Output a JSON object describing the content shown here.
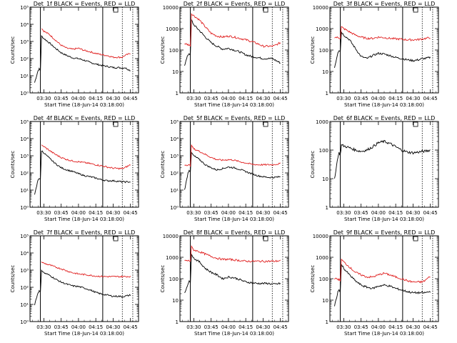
{
  "figure": {
    "xlabel": "Start Time (18-Jun-14 03:18:00)",
    "ylabel": "Counts/sec",
    "x_ticks": [
      "03:30",
      "03:45",
      "04:00",
      "04:15",
      "04:30",
      "04:45"
    ],
    "colors": {
      "events": "#000000",
      "lld": "#e02020"
    },
    "vertical_markers": [
      {
        "time": "03:27",
        "style": "solid"
      },
      {
        "time": "04:21",
        "style": "solid"
      },
      {
        "time": "04:38",
        "style": "dotted"
      },
      {
        "time": "04:47",
        "style": "dotted"
      }
    ]
  },
  "chart_data": [
    {
      "type": "line",
      "title": "Det_1f BLACK = Events, RED = LLD",
      "yscale": "log",
      "ylim": [
        1,
        100000
      ],
      "y_ticks": [
        "10⁰",
        "10¹",
        "10²",
        "10³",
        "10⁴",
        "10⁵"
      ],
      "x": [
        "03:22",
        "03:25",
        "03:26",
        "03:27",
        "03:28",
        "03:30",
        "03:35",
        "03:40",
        "03:45",
        "03:50",
        "03:55",
        "04:00",
        "04:05",
        "04:10",
        "04:15",
        "04:20",
        "04:25",
        "04:30",
        "04:35",
        "04:38",
        "04:40",
        "04:45",
        "04:48"
      ],
      "series": [
        {
          "name": "BLACK = Events",
          "y": [
            4,
            20,
            25,
            20,
            2000,
            1500,
            800,
            400,
            220,
            150,
            110,
            100,
            80,
            60,
            48,
            40,
            35,
            30,
            30,
            28,
            30,
            20,
            null
          ]
        },
        {
          "name": "RED = LLD",
          "y": [
            null,
            null,
            null,
            null,
            6000,
            4000,
            2500,
            1200,
            600,
            400,
            350,
            400,
            300,
            250,
            200,
            170,
            150,
            120,
            120,
            120,
            150,
            200,
            null
          ]
        }
      ]
    },
    {
      "type": "line",
      "title": "Det_2f BLACK = Events, RED = LLD",
      "yscale": "log",
      "ylim": [
        1,
        10000
      ],
      "y_ticks": [
        "1",
        "10",
        "100",
        "1000",
        "10000"
      ],
      "x": [
        "03:22",
        "03:25",
        "03:26",
        "03:27",
        "03:28",
        "03:30",
        "03:35",
        "03:40",
        "03:45",
        "03:50",
        "03:55",
        "04:00",
        "04:05",
        "04:10",
        "04:15",
        "04:20",
        "04:25",
        "04:30",
        "04:35",
        "04:38",
        "04:40",
        "04:45",
        "04:48"
      ],
      "series": [
        {
          "name": "BLACK = Events",
          "y": [
            20,
            60,
            70,
            60,
            2500,
            1500,
            800,
            400,
            220,
            150,
            110,
            120,
            100,
            80,
            60,
            50,
            45,
            40,
            40,
            40,
            35,
            25,
            null
          ]
        },
        {
          "name": "RED = LLD",
          "y": [
            200,
            180,
            170,
            160,
            5000,
            4000,
            2500,
            1200,
            600,
            450,
            400,
            450,
            400,
            350,
            300,
            250,
            200,
            150,
            150,
            150,
            160,
            220,
            null
          ]
        }
      ]
    },
    {
      "type": "line",
      "title": "Det_3f BLACK = Events, RED = LLD",
      "yscale": "log",
      "ylim": [
        1,
        10000
      ],
      "y_ticks": [
        "1",
        "10",
        "100",
        "1000",
        "10000"
      ],
      "x": [
        "03:22",
        "03:25",
        "03:26",
        "03:27",
        "03:28",
        "03:30",
        "03:35",
        "03:40",
        "03:45",
        "03:50",
        "03:55",
        "04:00",
        "04:05",
        "04:10",
        "04:15",
        "04:20",
        "04:25",
        "04:30",
        "04:35",
        "04:38",
        "04:40",
        "04:45",
        "04:48"
      ],
      "series": [
        {
          "name": "BLACK = Events",
          "y": [
            15,
            80,
            100,
            90,
            700,
            500,
            300,
            120,
            50,
            40,
            55,
            70,
            65,
            55,
            45,
            40,
            35,
            32,
            35,
            40,
            40,
            45,
            null
          ]
        },
        {
          "name": "RED = LLD",
          "y": [
            400,
            380,
            370,
            360,
            1200,
            1000,
            700,
            500,
            400,
            350,
            350,
            400,
            380,
            350,
            330,
            320,
            300,
            300,
            310,
            330,
            340,
            380,
            null
          ]
        }
      ]
    },
    {
      "type": "line",
      "title": "Det_4f BLACK = Events, RED = LLD",
      "yscale": "log",
      "ylim": [
        1,
        100000
      ],
      "y_ticks": [
        "10⁰",
        "10¹",
        "10²",
        "10³",
        "10⁴",
        "10⁵"
      ],
      "x": [
        "03:22",
        "03:25",
        "03:26",
        "03:27",
        "03:28",
        "03:30",
        "03:35",
        "03:40",
        "03:45",
        "03:50",
        "03:55",
        "04:00",
        "04:05",
        "04:10",
        "04:15",
        "04:20",
        "04:25",
        "04:30",
        "04:35",
        "04:38",
        "04:40",
        "04:45",
        "04:48"
      ],
      "series": [
        {
          "name": "BLACK = Events",
          "y": [
            5,
            40,
            50,
            40,
            2000,
            1500,
            700,
            350,
            200,
            150,
            120,
            90,
            70,
            60,
            50,
            40,
            35,
            35,
            32,
            30,
            30,
            30,
            null
          ]
        },
        {
          "name": "RED = LLD",
          "y": [
            null,
            null,
            null,
            null,
            4000,
            3500,
            2000,
            1200,
            800,
            600,
            500,
            450,
            400,
            350,
            300,
            260,
            220,
            190,
            180,
            180,
            200,
            300,
            null
          ]
        }
      ]
    },
    {
      "type": "line",
      "title": "Det_5f BLACK = Events, RED = LLD",
      "yscale": "log",
      "ylim": [
        1,
        100000
      ],
      "y_ticks": [
        "10⁰",
        "10¹",
        "10²",
        "10³",
        "10⁴",
        "10⁵"
      ],
      "x": [
        "03:22",
        "03:25",
        "03:26",
        "03:27",
        "03:28",
        "03:30",
        "03:35",
        "03:40",
        "03:45",
        "03:50",
        "03:55",
        "04:00",
        "04:05",
        "04:10",
        "04:15",
        "04:20",
        "04:25",
        "04:30",
        "04:35",
        "04:38",
        "04:40",
        "04:45",
        "04:48"
      ],
      "series": [
        {
          "name": "BLACK = Events",
          "y": [
            10,
            100,
            150,
            120,
            1500,
            1000,
            600,
            300,
            200,
            150,
            180,
            220,
            200,
            160,
            120,
            90,
            70,
            60,
            55,
            55,
            55,
            60,
            null
          ]
        },
        {
          "name": "RED = LLD",
          "y": [
            300,
            290,
            280,
            270,
            4000,
            2500,
            1800,
            1200,
            800,
            600,
            550,
            600,
            550,
            450,
            380,
            320,
            300,
            300,
            300,
            300,
            310,
            350,
            null
          ]
        }
      ]
    },
    {
      "type": "line",
      "title": "Det_6f BLACK = Events, RED = LLD",
      "yscale": "log",
      "ylim": [
        1,
        1000
      ],
      "y_ticks": [
        "1",
        "10",
        "100",
        "1000"
      ],
      "x": [
        "03:22",
        "03:25",
        "03:26",
        "03:27",
        "03:28",
        "03:30",
        "03:35",
        "03:40",
        "03:45",
        "03:50",
        "03:55",
        "04:00",
        "04:05",
        "04:10",
        "04:15",
        "04:20",
        "04:25",
        "04:30",
        "04:35",
        "04:38",
        "04:40",
        "04:45",
        "04:48"
      ],
      "series": [
        {
          "name": "BLACK = Events",
          "y": [
            10,
            60,
            80,
            70,
            150,
            140,
            120,
            100,
            90,
            100,
            130,
            180,
            200,
            170,
            130,
            100,
            85,
            80,
            85,
            90,
            90,
            100,
            null
          ]
        }
      ]
    },
    {
      "type": "line",
      "title": "Det_7f BLACK = Events, RED = LLD",
      "yscale": "log",
      "ylim": [
        1,
        100000
      ],
      "y_ticks": [
        "10⁰",
        "10¹",
        "10²",
        "10³",
        "10⁴",
        "10⁵"
      ],
      "x": [
        "03:22",
        "03:25",
        "03:26",
        "03:27",
        "03:28",
        "03:30",
        "03:35",
        "03:40",
        "03:45",
        "03:50",
        "03:55",
        "04:00",
        "04:05",
        "04:10",
        "04:15",
        "04:20",
        "04:25",
        "04:30",
        "04:35",
        "04:38",
        "04:40",
        "04:45",
        "04:48"
      ],
      "series": [
        {
          "name": "BLACK = Events",
          "y": [
            10,
            50,
            60,
            50,
            1000,
            700,
            500,
            300,
            200,
            150,
            120,
            110,
            90,
            70,
            50,
            40,
            35,
            30,
            30,
            28,
            30,
            35,
            null
          ]
        },
        {
          "name": "RED = LLD",
          "y": [
            null,
            null,
            null,
            null,
            3000,
            2500,
            2000,
            1500,
            1200,
            900,
            700,
            600,
            550,
            500,
            450,
            430,
            420,
            420,
            420,
            420,
            420,
            430,
            null
          ]
        }
      ]
    },
    {
      "type": "line",
      "title": "Det_8f BLACK = Events, RED = LLD",
      "yscale": "log",
      "ylim": [
        1,
        10000
      ],
      "y_ticks": [
        "1",
        "10",
        "100",
        "1000",
        "10000"
      ],
      "x": [
        "03:22",
        "03:25",
        "03:26",
        "03:27",
        "03:28",
        "03:30",
        "03:35",
        "03:40",
        "03:45",
        "03:50",
        "03:55",
        "04:00",
        "04:05",
        "04:10",
        "04:15",
        "04:20",
        "04:25",
        "04:30",
        "04:35",
        "04:38",
        "04:40",
        "04:45",
        "04:48"
      ],
      "series": [
        {
          "name": "BLACK = Events",
          "y": [
            20,
            60,
            80,
            60,
            1500,
            900,
            600,
            300,
            200,
            150,
            100,
            120,
            110,
            90,
            70,
            65,
            60,
            60,
            60,
            55,
            55,
            60,
            null
          ]
        },
        {
          "name": "RED = LLD",
          "y": [
            700,
            690,
            680,
            670,
            3000,
            2200,
            1800,
            1400,
            1100,
            900,
            800,
            800,
            750,
            700,
            650,
            650,
            650,
            650,
            650,
            650,
            650,
            700,
            null
          ]
        }
      ]
    },
    {
      "type": "line",
      "title": "Det_9f BLACK = Events, RED = LLD",
      "yscale": "log",
      "ylim": [
        1,
        10000
      ],
      "y_ticks": [
        "1",
        "10",
        "100",
        "1000",
        "10000"
      ],
      "x": [
        "03:22",
        "03:25",
        "03:26",
        "03:27",
        "03:28",
        "03:30",
        "03:35",
        "03:40",
        "03:45",
        "03:50",
        "03:55",
        "04:00",
        "04:05",
        "04:10",
        "04:15",
        "04:20",
        "04:25",
        "04:30",
        "04:35",
        "04:38",
        "04:40",
        "04:45",
        "04:48"
      ],
      "series": [
        {
          "name": "BLACK = Events",
          "y": [
            5,
            25,
            30,
            25,
            500,
            300,
            150,
            80,
            50,
            40,
            35,
            45,
            50,
            45,
            35,
            30,
            25,
            22,
            22,
            22,
            22,
            25,
            null
          ]
        },
        {
          "name": "RED = LLD",
          "y": [
            100,
            95,
            90,
            85,
            800,
            600,
            350,
            200,
            150,
            120,
            120,
            150,
            180,
            150,
            120,
            100,
            80,
            70,
            70,
            70,
            80,
            130,
            null
          ]
        }
      ]
    }
  ]
}
